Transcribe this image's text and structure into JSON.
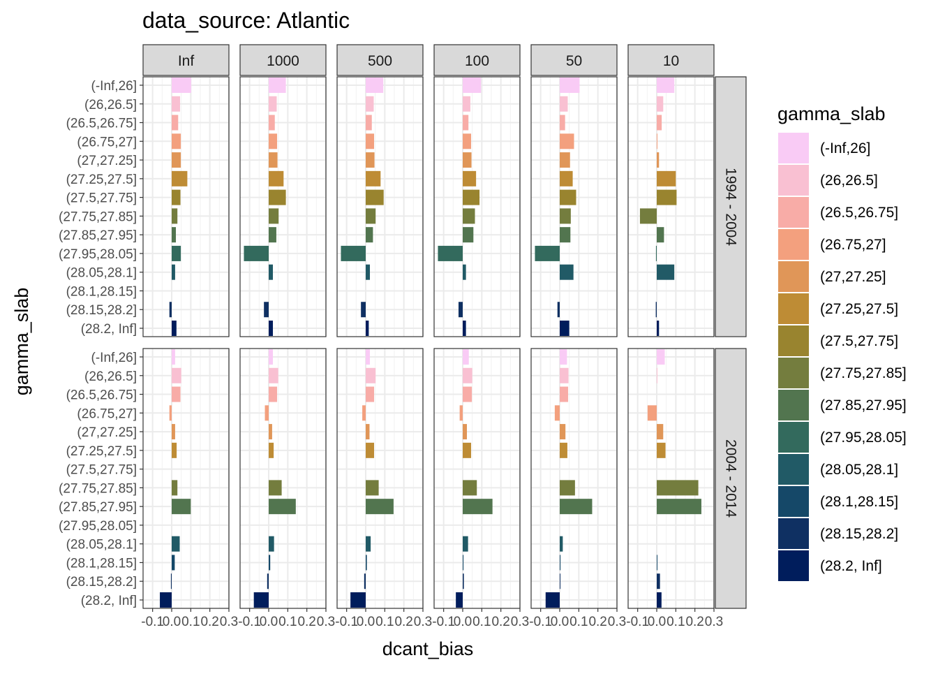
{
  "chart_data": {
    "type": "bar",
    "title": "data_source: Atlantic",
    "xlabel": "dcant_bias",
    "ylabel": "gamma_slab",
    "xlim": [
      -0.15,
      0.3
    ],
    "x_ticks": [
      "-0.1",
      "0.0",
      "0.1",
      "0.2",
      "0.3"
    ],
    "x_tick_values": [
      -0.1,
      0.0,
      0.1,
      0.2,
      0.3
    ],
    "grid": true,
    "legend": {
      "title": "gamma_slab",
      "position": "right"
    },
    "column_facets": [
      "Inf",
      "1000",
      "500",
      "100",
      "50",
      "10"
    ],
    "row_facets": [
      "1994 - 2004",
      "2004 - 2014"
    ],
    "categories": [
      "(-Inf,26]",
      "(26,26.5]",
      "(26.5,26.75]",
      "(26.75,27]",
      "(27,27.25]",
      "(27.25,27.5]",
      "(27.5,27.75]",
      "(27.75,27.85]",
      "(27.85,27.95]",
      "(27.95,28.05]",
      "(28.05,28.1]",
      "(28.1,28.15]",
      "(28.15,28.2]",
      "(28.2, Inf]"
    ],
    "colors": [
      "#F9CBF5",
      "#F9C0D2",
      "#F8ACA7",
      "#F3A07E",
      "#E09658",
      "#BE8C35",
      "#99842F",
      "#747D3E",
      "#52754F",
      "#336A5D",
      "#215A66",
      "#154868",
      "#0F3062",
      "#001D5C"
    ],
    "panels": [
      {
        "row": "1994 - 2004",
        "col": "Inf",
        "values": [
          0.102,
          0.044,
          0.034,
          0.048,
          0.048,
          0.082,
          0.046,
          0.03,
          0.022,
          0.048,
          0.018,
          null,
          -0.012,
          0.025
        ]
      },
      {
        "row": "1994 - 2004",
        "col": "1000",
        "values": [
          0.09,
          0.042,
          0.032,
          0.044,
          0.046,
          0.078,
          0.09,
          0.052,
          0.04,
          -0.13,
          0.022,
          null,
          -0.025,
          0.022
        ]
      },
      {
        "row": "1994 - 2004",
        "col": "500",
        "values": [
          0.092,
          0.042,
          0.032,
          0.044,
          0.046,
          0.078,
          0.094,
          0.052,
          0.038,
          -0.13,
          0.022,
          null,
          -0.025,
          0.016
        ]
      },
      {
        "row": "1994 - 2004",
        "col": "100",
        "values": [
          0.096,
          0.04,
          0.03,
          0.044,
          0.046,
          0.07,
          0.088,
          0.064,
          0.056,
          -0.13,
          0.017,
          null,
          -0.022,
          0.017
        ]
      },
      {
        "row": "1994 - 2004",
        "col": "50",
        "values": [
          0.104,
          0.042,
          0.028,
          0.075,
          0.054,
          0.068,
          0.086,
          0.058,
          0.056,
          -0.13,
          0.072,
          null,
          -0.012,
          0.05
        ]
      },
      {
        "row": "1994 - 2004",
        "col": "10",
        "values": [
          0.092,
          0.034,
          0.026,
          0.002,
          0.012,
          0.1,
          0.104,
          -0.088,
          0.038,
          -0.004,
          0.092,
          null,
          -0.005,
          0.012
        ]
      },
      {
        "row": "2004 - 2014",
        "col": "Inf",
        "values": [
          0.018,
          0.05,
          0.046,
          -0.012,
          0.018,
          0.026,
          null,
          0.03,
          0.1,
          null,
          0.042,
          0.016,
          -0.004,
          -0.062
        ]
      },
      {
        "row": "2004 - 2014",
        "col": "1000",
        "values": [
          0.022,
          0.05,
          0.044,
          -0.02,
          0.018,
          0.026,
          null,
          0.068,
          0.142,
          null,
          0.028,
          0.008,
          -0.008,
          -0.078
        ]
      },
      {
        "row": "2004 - 2014",
        "col": "500",
        "values": [
          0.022,
          0.052,
          0.044,
          -0.018,
          0.02,
          0.044,
          null,
          0.068,
          0.146,
          null,
          0.026,
          0.006,
          -0.008,
          -0.08
        ]
      },
      {
        "row": "2004 - 2014",
        "col": "100",
        "values": [
          0.032,
          0.05,
          0.048,
          -0.016,
          0.022,
          0.044,
          null,
          0.074,
          0.156,
          null,
          0.028,
          0.004,
          0.006,
          -0.036
        ]
      },
      {
        "row": "2004 - 2014",
        "col": "50",
        "values": [
          0.038,
          0.046,
          0.044,
          -0.026,
          0.03,
          0.04,
          null,
          0.08,
          0.17,
          null,
          0.016,
          0.004,
          0.003,
          -0.074
        ]
      },
      {
        "row": "2004 - 2014",
        "col": "10",
        "values": [
          0.042,
          0.002,
          null,
          -0.048,
          0.034,
          0.046,
          null,
          0.218,
          0.234,
          null,
          null,
          0.003,
          0.017,
          0.025
        ]
      }
    ]
  }
}
